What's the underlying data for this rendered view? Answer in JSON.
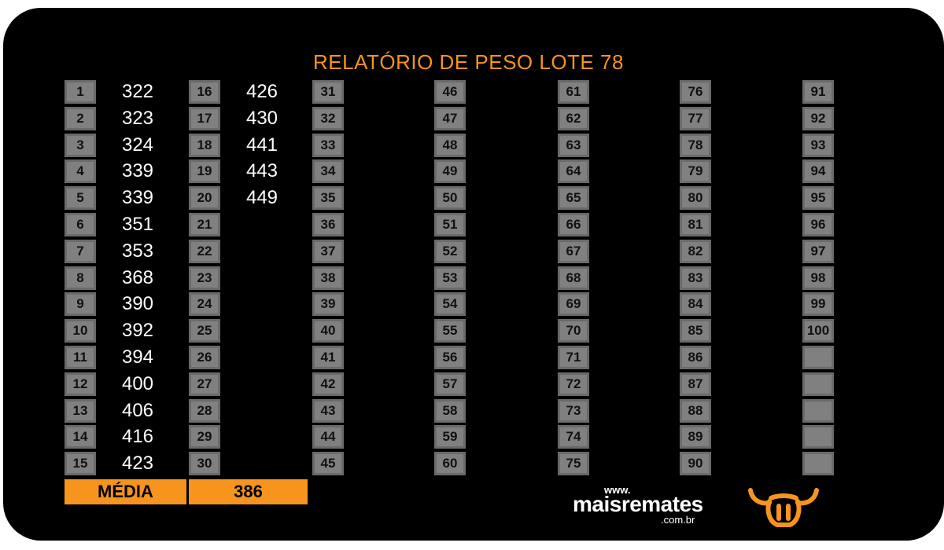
{
  "report": {
    "title": "RELATÓRIO DE PESO LOTE  78",
    "average_label": "MÉDIA",
    "average_value": "386"
  },
  "weights": [
    "322",
    "323",
    "324",
    "339",
    "339",
    "351",
    "353",
    "368",
    "390",
    "392",
    "394",
    "400",
    "406",
    "416",
    "423",
    "426",
    "430",
    "441",
    "443",
    "449"
  ],
  "slot_count": 100,
  "rows_per_column": 15,
  "brand": {
    "www": "www.",
    "name": "maisremates",
    "domain": ".com.br",
    "icon": "bull-head-icon"
  },
  "colors": {
    "accent": "#f7941d",
    "badge": "#808080",
    "background": "#000000"
  }
}
